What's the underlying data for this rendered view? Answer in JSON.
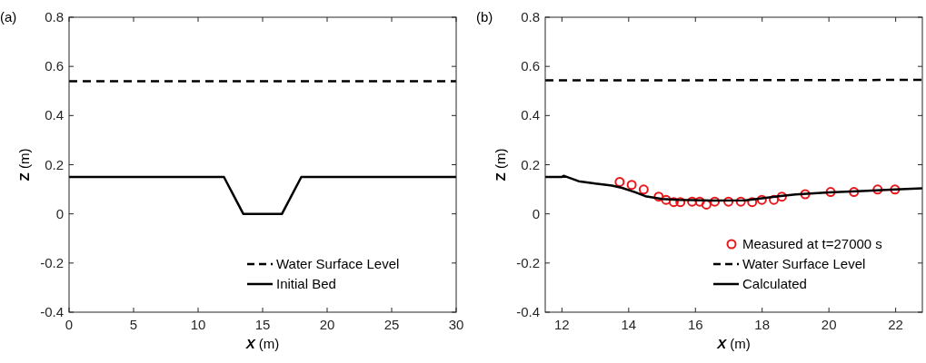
{
  "chart_data": [
    {
      "type": "line",
      "title": "(a)",
      "xlabel": "X (m)",
      "ylabel": "Z (m)",
      "xlim": [
        0,
        30
      ],
      "xticks": [
        0,
        5,
        10,
        15,
        20,
        25,
        30
      ],
      "ylim": [
        -0.4,
        0.8
      ],
      "yticks": [
        -0.4,
        -0.2,
        0,
        0.2,
        0.4,
        0.6,
        0.8
      ],
      "legend": "bottom right",
      "grid": false,
      "series": [
        {
          "name": "Water Surface Level",
          "color": "#000000",
          "line_style": "dashed",
          "x": [
            0,
            30
          ],
          "values": [
            0.54,
            0.54
          ]
        },
        {
          "name": "Initial Bed",
          "color": "#000000",
          "line_style": "solid",
          "x": [
            0,
            12,
            13.5,
            16.5,
            18,
            30
          ],
          "values": [
            0.15,
            0.15,
            0,
            0,
            0.15,
            0.15
          ]
        }
      ]
    },
    {
      "type": "line",
      "title": "(b)",
      "xlabel": "X (m)",
      "ylabel": "Z (m)",
      "xlim": [
        11.5,
        22.8
      ],
      "xticks": [
        12,
        14,
        16,
        18,
        20,
        22
      ],
      "ylim": [
        -0.4,
        0.8
      ],
      "yticks": [
        -0.4,
        -0.2,
        0,
        0.2,
        0.4,
        0.6,
        0.8
      ],
      "legend": "bottom right",
      "grid": false,
      "series": [
        {
          "name": "Measured at t=27000 s",
          "type": "scatter",
          "marker": "circle",
          "color": "#e8171b",
          "x": [
            13.73,
            14.09,
            14.45,
            14.9,
            15.12,
            15.35,
            15.55,
            15.9,
            16.13,
            16.33,
            16.58,
            16.99,
            17.36,
            17.7,
            17.99,
            18.35,
            18.59,
            19.29,
            20.05,
            20.75,
            21.46,
            21.98
          ],
          "values": [
            0.13,
            0.118,
            0.099,
            0.07,
            0.057,
            0.048,
            0.048,
            0.05,
            0.05,
            0.038,
            0.05,
            0.05,
            0.05,
            0.048,
            0.057,
            0.057,
            0.07,
            0.08,
            0.089,
            0.089,
            0.099,
            0.099
          ]
        },
        {
          "name": "Water Surface Level",
          "color": "#000000",
          "line_style": "dashed",
          "x": [
            11.5,
            22.8
          ],
          "values": [
            0.543,
            0.545
          ]
        },
        {
          "name": "Calculated",
          "color": "#000000",
          "line_style": "solid",
          "x": [
            11.5,
            12,
            12.05,
            12.5,
            13,
            13.5,
            13.8,
            14.2,
            14.5,
            15,
            15.5,
            16.5,
            17.5,
            18,
            18.5,
            19,
            20,
            21,
            22,
            22.8
          ],
          "values": [
            0.15,
            0.15,
            0.155,
            0.133,
            0.123,
            0.115,
            0.106,
            0.088,
            0.072,
            0.061,
            0.057,
            0.054,
            0.055,
            0.063,
            0.072,
            0.079,
            0.087,
            0.093,
            0.099,
            0.104
          ]
        }
      ]
    }
  ]
}
